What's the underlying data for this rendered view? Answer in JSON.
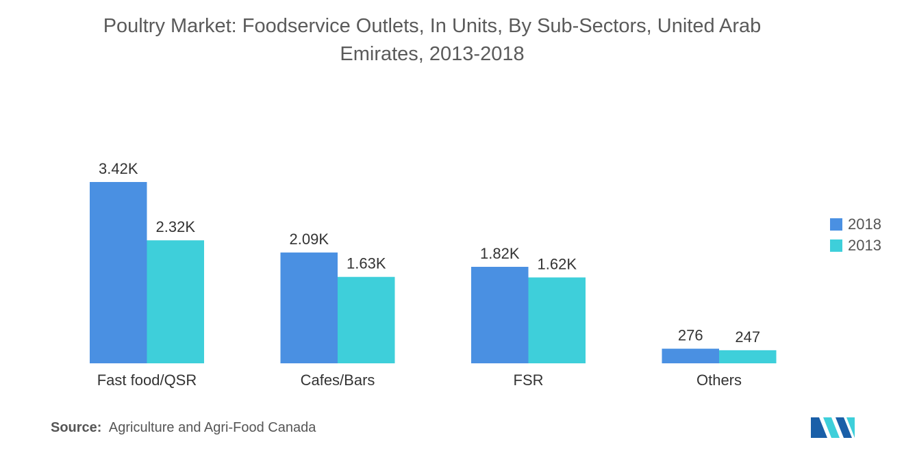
{
  "chart_data": {
    "type": "bar",
    "title": "Poultry Market: Foodservice Outlets, In Units, By Sub-Sectors, United Arab Emirates, 2013-2018",
    "title_lines": [
      "Poultry Market: Foodservice Outlets, In Units, By Sub-Sectors, United Arab",
      "Emirates, 2013-2018"
    ],
    "categories": [
      "Fast food/QSR",
      "Cafes/Bars",
      "FSR",
      "Others"
    ],
    "series": [
      {
        "name": "2018",
        "color": "#4a90e2",
        "values": [
          3420,
          2090,
          1820,
          276
        ],
        "labels": [
          "3.42K",
          "2.09K",
          "1.82K",
          "276"
        ]
      },
      {
        "name": "2013",
        "color": "#3ecfda",
        "values": [
          2320,
          1630,
          1620,
          247
        ],
        "labels": [
          "2.32K",
          "1.63K",
          "1.62K",
          "247"
        ]
      }
    ],
    "xlabel": "",
    "ylabel": "",
    "ylim": [
      0,
      3420
    ],
    "grid": false,
    "legend_position": "right"
  },
  "source": {
    "label": "Source:",
    "text": "Agriculture and Agri-Food Canada"
  },
  "logo": {
    "icon": "mordor-intelligence-logo",
    "colors": [
      "#1a5fa8",
      "#3ecfda"
    ]
  }
}
